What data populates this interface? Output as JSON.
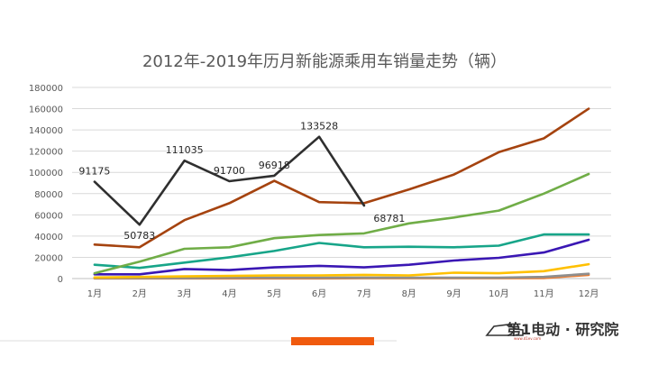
{
  "chart_data": {
    "type": "line",
    "title": "2012年-2019年历月新能源乘用车销量走势（辆）",
    "xlabel": "",
    "ylabel": "",
    "categories": [
      "1月",
      "2月",
      "3月",
      "4月",
      "5月",
      "6月",
      "7月",
      "8月",
      "9月",
      "10月",
      "11月",
      "12月"
    ],
    "ylim": [
      0,
      180000
    ],
    "y_ticks": [
      0,
      20000,
      40000,
      60000,
      80000,
      100000,
      120000,
      140000,
      160000,
      180000
    ],
    "y_tick_labels": [
      "0",
      "20000",
      "40000",
      "60000",
      "80000",
      "100000",
      "120000",
      "140000",
      "160000",
      "180000"
    ],
    "grid": true,
    "legend": "none",
    "series": [
      {
        "color": "#2f2f2f",
        "values": [
          91175,
          50783,
          111035,
          91700,
          96918,
          133528,
          68781,
          null,
          null,
          null,
          null,
          null
        ],
        "data_labels": [
          "91175",
          "50783",
          "111035",
          "91700",
          "96918",
          "133528",
          "68781"
        ]
      },
      {
        "color": "#a5430f",
        "values": [
          32000,
          29500,
          55000,
          71000,
          92000,
          72000,
          71000,
          84000,
          98000,
          119000,
          132000,
          160000
        ]
      },
      {
        "color": "#70ad47",
        "values": [
          5000,
          16000,
          28000,
          29500,
          38000,
          41000,
          42500,
          52000,
          57500,
          64000,
          80000,
          98500
        ]
      },
      {
        "color": "#17a589",
        "values": [
          13000,
          10000,
          15000,
          20000,
          26000,
          33500,
          29500,
          30000,
          29500,
          31000,
          41500,
          41500
        ]
      },
      {
        "color": "#3a17b4",
        "values": [
          4000,
          4000,
          9000,
          8000,
          10500,
          12000,
          10500,
          13000,
          17000,
          19500,
          24500,
          36500
        ]
      },
      {
        "color": "#ffc000",
        "values": [
          1000,
          1500,
          2000,
          2500,
          3000,
          3000,
          3500,
          3000,
          5500,
          5000,
          7000,
          13500
        ]
      },
      {
        "color": "#8e8e8e",
        "values": [
          500,
          500,
          500,
          800,
          800,
          800,
          800,
          800,
          800,
          800,
          1500,
          4500
        ]
      },
      {
        "color": "#ed7d31",
        "values": [
          200,
          200,
          200,
          200,
          200,
          200,
          300,
          300,
          300,
          300,
          500,
          3500
        ]
      }
    ]
  },
  "footer": {
    "bar_color": "#f05a0e",
    "logo_text": "第1电动 · 研究院",
    "logo_url_text": "www.d1ev.com"
  }
}
